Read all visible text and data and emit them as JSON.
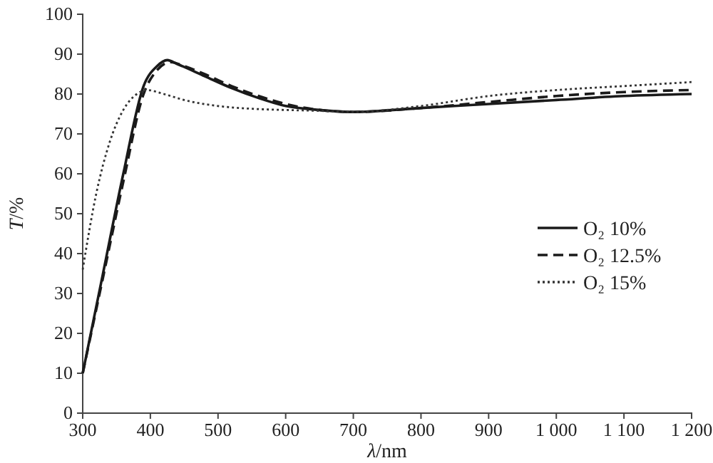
{
  "chart_data": {
    "type": "line",
    "xlabel": "λ/nm",
    "ylabel": "T/%",
    "xlim": [
      300,
      1200
    ],
    "ylim": [
      0,
      100
    ],
    "xticks": [
      300,
      400,
      500,
      600,
      700,
      800,
      900,
      {
        "value": 1000,
        "label": "1 000"
      },
      {
        "value": 1100,
        "label": "1 100"
      },
      {
        "value": 1200,
        "label": "1 200"
      }
    ],
    "yticks": [
      0,
      10,
      20,
      30,
      40,
      50,
      60,
      70,
      80,
      90,
      100
    ],
    "grid": false,
    "legend": "right",
    "marker": "none",
    "series": [
      {
        "name": "O₂ 10%",
        "color": "#1a1a1a",
        "line_style": "solid",
        "x": [
          300,
          330,
          360,
          390,
          410,
          425,
          440,
          480,
          520,
          560,
          600,
          650,
          700,
          800,
          900,
          1000,
          1100,
          1200
        ],
        "values": [
          10,
          35,
          60,
          82,
          87,
          88.5,
          87.5,
          84.5,
          81.5,
          79,
          77,
          76,
          75.5,
          76.5,
          77.5,
          78.5,
          79.5,
          80
        ]
      },
      {
        "name": "O₂ 12.5%",
        "color": "#1a1a1a",
        "line_style": "dashed",
        "x": [
          300,
          330,
          360,
          390,
          410,
          430,
          450,
          480,
          520,
          560,
          600,
          650,
          700,
          800,
          900,
          1000,
          1100,
          1200
        ],
        "values": [
          10,
          34,
          58,
          80,
          86,
          88,
          87,
          85,
          82,
          79.5,
          77.5,
          76,
          75.5,
          76.5,
          78,
          79.5,
          80.5,
          81
        ]
      },
      {
        "name": "O₂ 15%",
        "color": "#333333",
        "line_style": "dotted",
        "x": [
          300,
          320,
          340,
          360,
          380,
          395,
          420,
          450,
          500,
          550,
          600,
          650,
          700,
          800,
          900,
          1000,
          1100,
          1200
        ],
        "values": [
          36,
          55,
          68,
          76,
          80,
          81,
          80,
          78.5,
          77,
          76.3,
          76,
          75.8,
          75.5,
          77,
          79.5,
          81,
          82,
          83
        ]
      }
    ]
  }
}
